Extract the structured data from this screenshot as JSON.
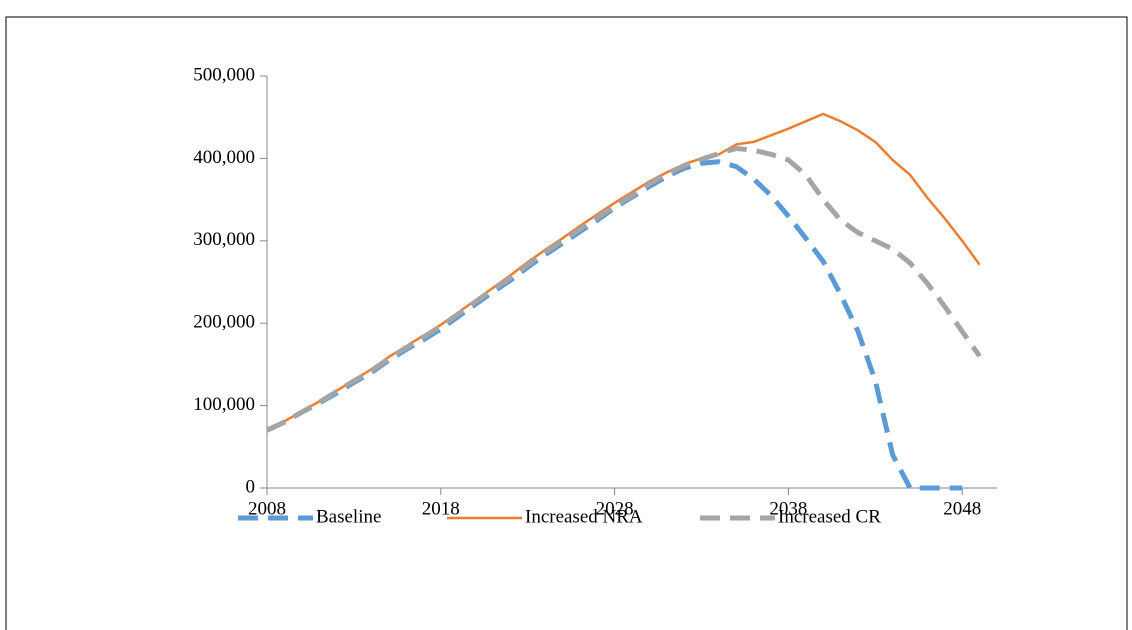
{
  "chart_data": {
    "type": "line",
    "x": [
      2008,
      2009,
      2010,
      2011,
      2012,
      2013,
      2014,
      2015,
      2016,
      2017,
      2018,
      2019,
      2020,
      2021,
      2022,
      2023,
      2024,
      2025,
      2026,
      2027,
      2028,
      2029,
      2030,
      2031,
      2032,
      2033,
      2034,
      2035,
      2036,
      2037,
      2038,
      2039,
      2040,
      2041,
      2042,
      2043,
      2044,
      2045,
      2046,
      2047,
      2048,
      2049
    ],
    "series": [
      {
        "name": "Baseline",
        "color": "#5b9bd5",
        "dashed": true,
        "values": [
          70000,
          80000,
          92000,
          103000,
          115000,
          128000,
          140000,
          155000,
          168000,
          180000,
          193000,
          208000,
          223000,
          238000,
          252000,
          268000,
          283000,
          297000,
          311000,
          325000,
          340000,
          353000,
          366000,
          378000,
          388000,
          394000,
          396000,
          390000,
          375000,
          355000,
          330000,
          303000,
          275000,
          235000,
          190000,
          130000,
          40000,
          0,
          0,
          0,
          0,
          null
        ]
      },
      {
        "name": "Increased NRA",
        "color": "#ed7d31",
        "dashed": false,
        "values": [
          70000,
          81000,
          93000,
          105000,
          118000,
          131000,
          144000,
          159000,
          172000,
          185000,
          198000,
          213000,
          228000,
          243000,
          258000,
          274000,
          289000,
          303000,
          318000,
          332000,
          346000,
          359000,
          372000,
          383000,
          393000,
          400000,
          405000,
          417000,
          420000,
          428000,
          436000,
          445000,
          454000,
          445000,
          434000,
          420000,
          398000,
          380000,
          352000,
          327000,
          300000,
          271000
        ]
      },
      {
        "name": "Increased CR",
        "color": "#a5a5a5",
        "dashed": true,
        "values": [
          70000,
          80000,
          92000,
          104000,
          117000,
          130000,
          142000,
          157000,
          170000,
          183000,
          196000,
          211000,
          226000,
          241000,
          255000,
          271000,
          286000,
          300000,
          314000,
          328000,
          342000,
          355000,
          369000,
          381000,
          391000,
          399000,
          406000,
          412000,
          410000,
          405000,
          398000,
          380000,
          350000,
          325000,
          310000,
          300000,
          290000,
          273000,
          248000,
          220000,
          190000,
          160000
        ]
      }
    ],
    "xlim": [
      2008,
      2050
    ],
    "xticks": [
      2008,
      2018,
      2028,
      2038,
      2048
    ],
    "ylim": [
      0,
      500000
    ],
    "yticks": [
      0,
      {
        "value": 100000,
        "label": "100,000"
      },
      {
        "value": 200000,
        "label": "200,000"
      },
      {
        "value": 300000,
        "label": "300,000"
      },
      {
        "value": 400000,
        "label": "400,000"
      },
      {
        "value": 500000,
        "label": "500,000"
      }
    ],
    "legend": "bottom"
  }
}
